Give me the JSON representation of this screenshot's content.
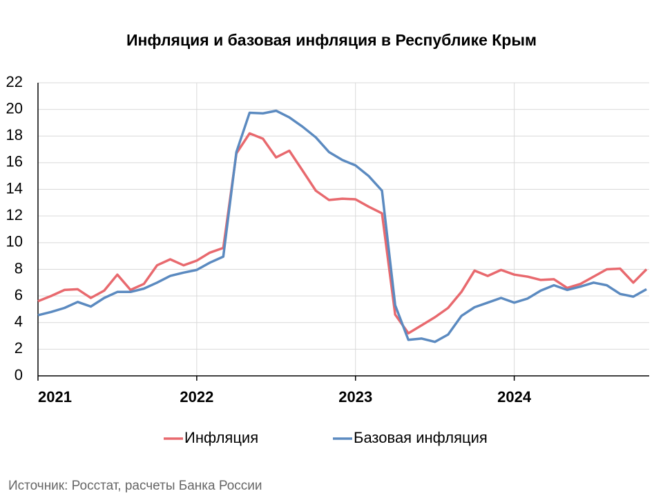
{
  "chart_data": {
    "type": "line",
    "title": "Инфляция и базовая инфляция в Республике Крым",
    "source": "Источник: Росстат, расчеты Банка России",
    "x": [
      2021,
      2021.083,
      2021.167,
      2021.25,
      2021.333,
      2021.417,
      2021.5,
      2021.583,
      2021.667,
      2021.75,
      2021.833,
      2021.917,
      2022,
      2022.083,
      2022.167,
      2022.25,
      2022.333,
      2022.417,
      2022.5,
      2022.583,
      2022.667,
      2022.75,
      2022.833,
      2022.917,
      2023,
      2023.083,
      2023.167,
      2023.25,
      2023.333,
      2023.417,
      2023.5,
      2023.583,
      2023.667,
      2023.75,
      2023.833,
      2023.917,
      2024,
      2024.083,
      2024.167,
      2024.25,
      2024.333,
      2024.417,
      2024.5,
      2024.583,
      2024.667,
      2024.75,
      2024.833
    ],
    "series": [
      {
        "name": "Инфляция",
        "color": "#e8696e",
        "values": [
          5.6,
          6.0,
          6.45,
          6.5,
          5.85,
          6.4,
          7.6,
          6.45,
          6.9,
          8.3,
          8.75,
          8.3,
          8.65,
          9.25,
          9.6,
          16.7,
          18.2,
          17.8,
          16.4,
          16.9,
          15.4,
          13.9,
          13.2,
          13.3,
          13.25,
          12.7,
          12.2,
          4.6,
          3.2,
          3.8,
          4.4,
          5.1,
          6.3,
          7.9,
          7.5,
          7.95,
          7.6,
          7.45,
          7.2,
          7.25,
          6.6,
          6.9,
          7.45,
          8.0,
          8.05,
          7.0,
          8.0
        ]
      },
      {
        "name": "Базовая инфляция",
        "color": "#5b8ac0",
        "values": [
          4.55,
          4.8,
          5.1,
          5.55,
          5.2,
          5.85,
          6.3,
          6.3,
          6.55,
          7.0,
          7.5,
          7.75,
          7.95,
          8.5,
          8.95,
          16.8,
          19.75,
          19.7,
          19.9,
          19.4,
          18.7,
          17.9,
          16.8,
          16.2,
          15.8,
          15.0,
          13.9,
          5.3,
          2.7,
          2.8,
          2.55,
          3.1,
          4.5,
          5.15,
          5.5,
          5.85,
          5.5,
          5.8,
          6.4,
          6.8,
          6.45,
          6.7,
          7.0,
          6.8,
          6.15,
          5.95,
          6.5
        ]
      }
    ],
    "xlim": [
      2021,
      2024.85
    ],
    "xticks": [
      2021,
      2022,
      2023,
      2024
    ],
    "ylim": [
      0,
      22
    ],
    "yticks": [
      0,
      2,
      4,
      6,
      8,
      10,
      12,
      14,
      16,
      18,
      20,
      22
    ],
    "grid": true,
    "legend": "bottom"
  }
}
